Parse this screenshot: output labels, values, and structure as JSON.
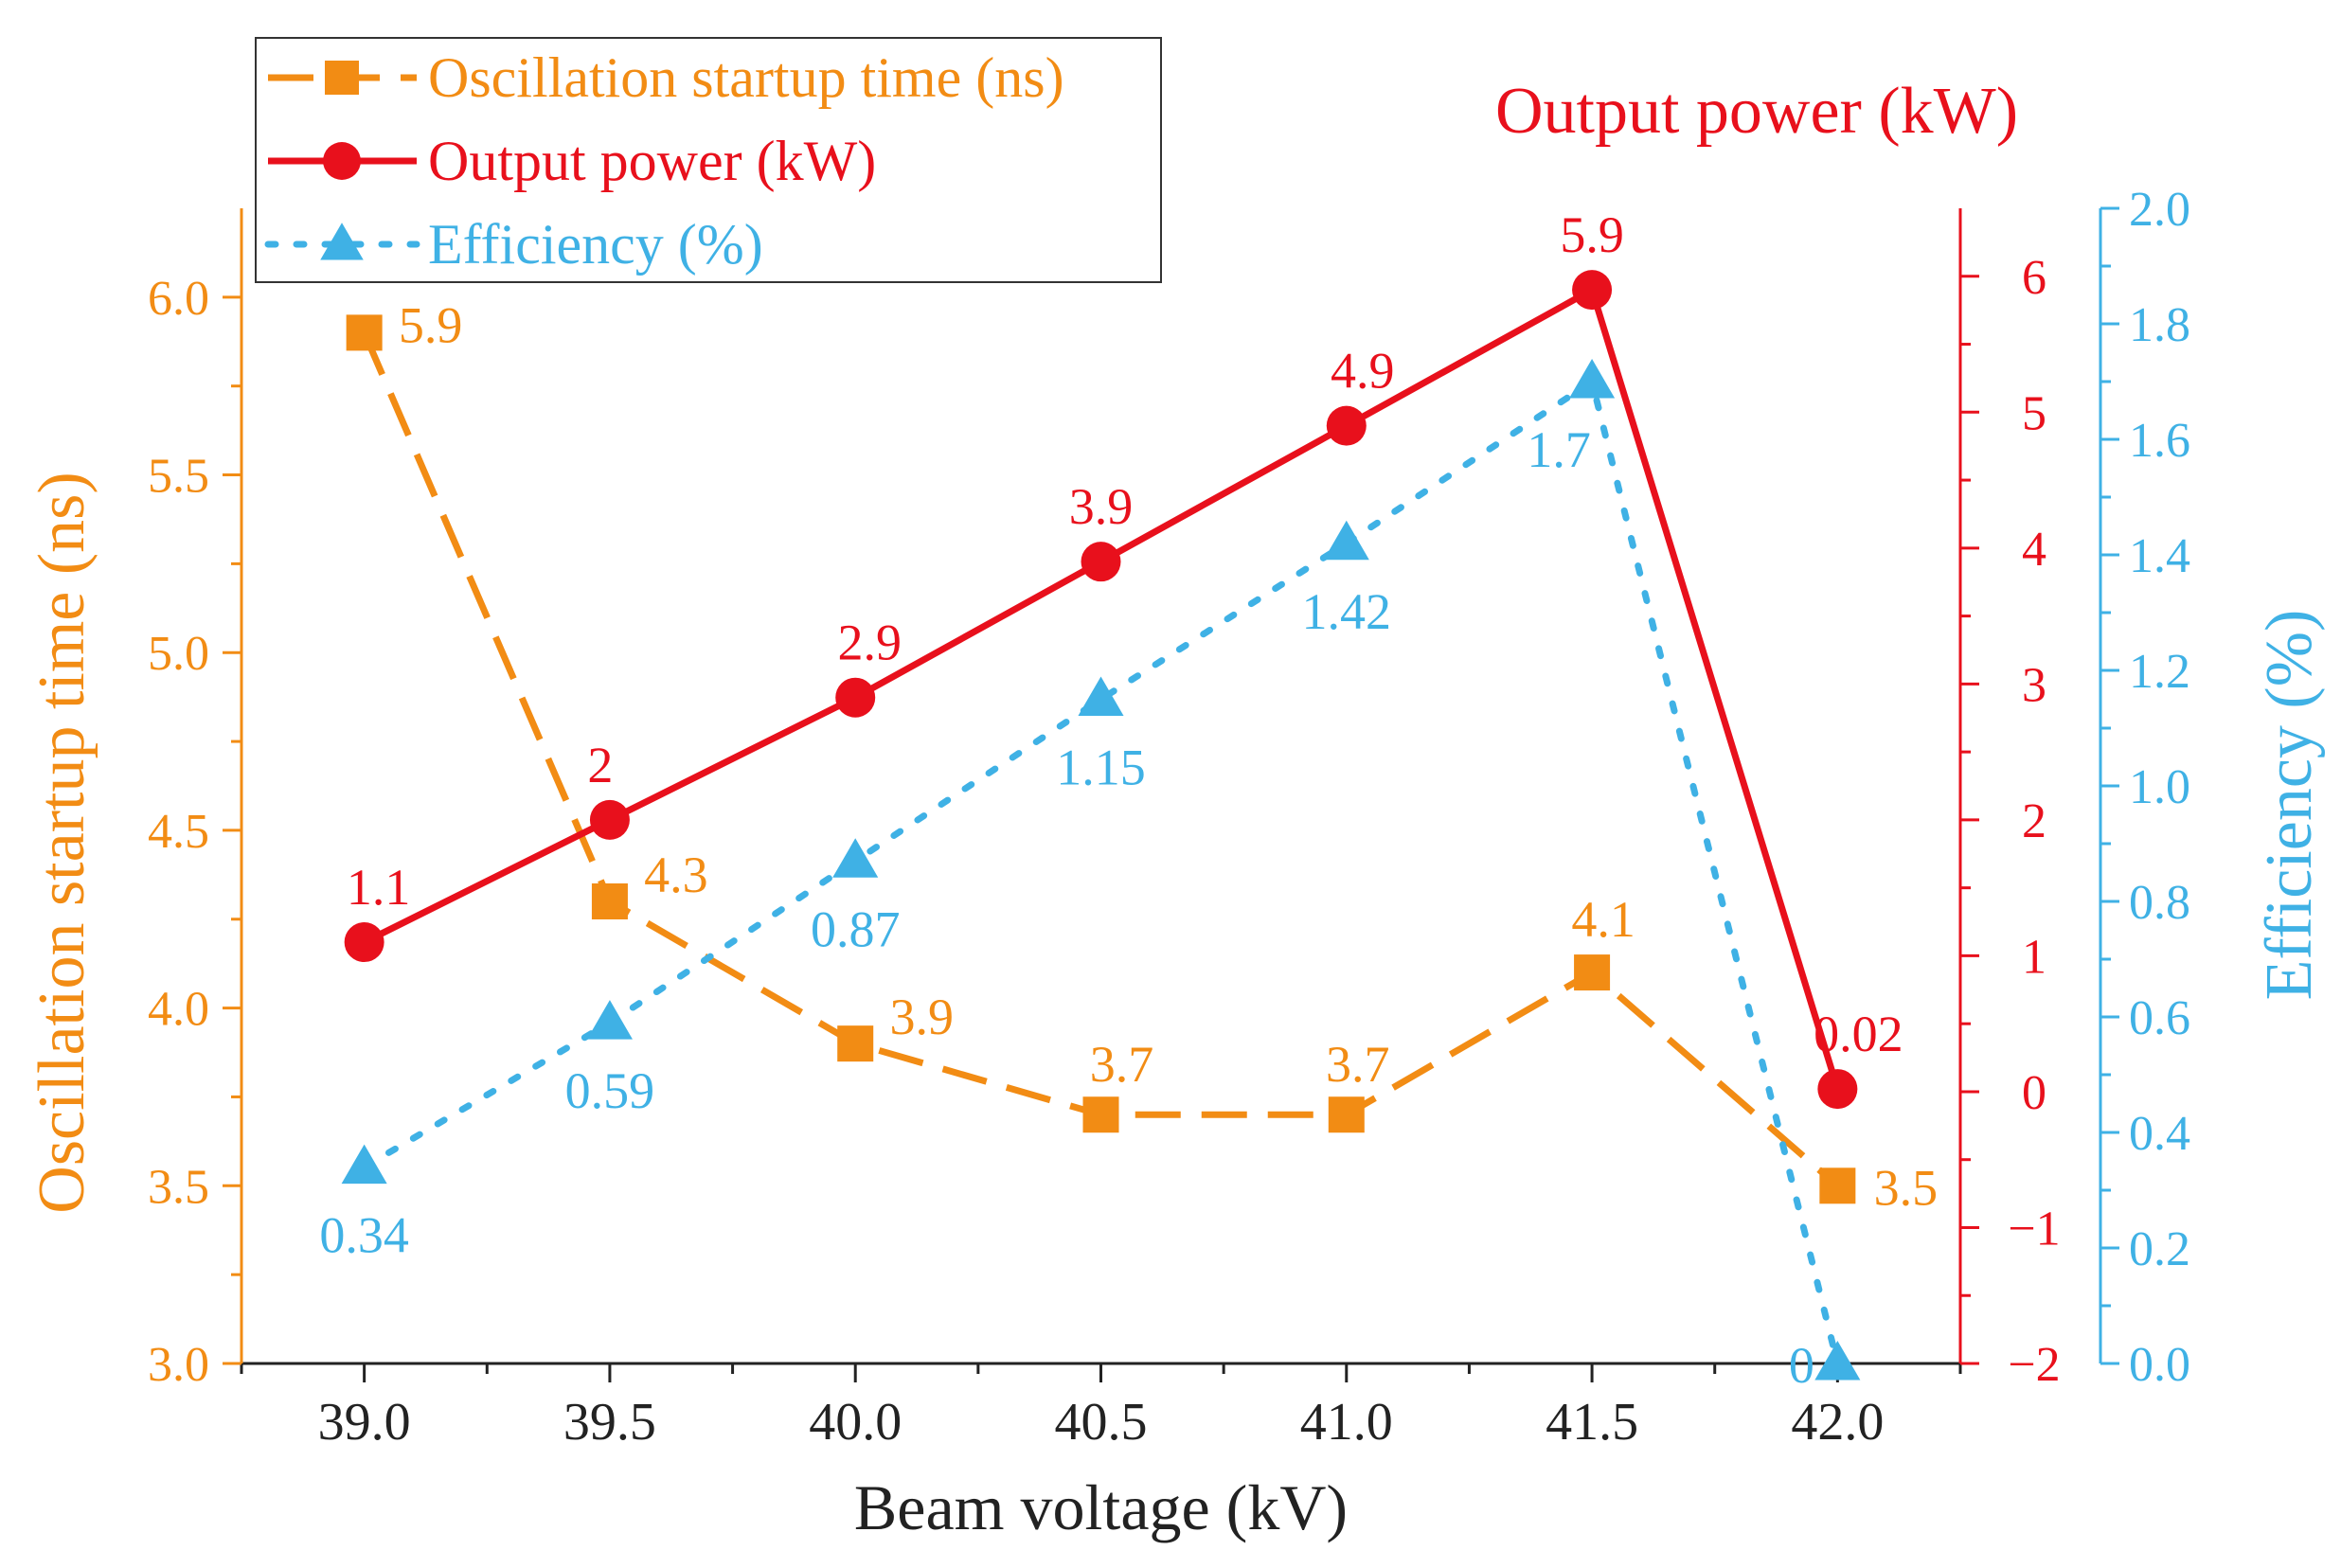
{
  "chart_data": {
    "type": "line",
    "xlabel": "Beam voltage (kV)",
    "x": [
      39.0,
      39.5,
      40.0,
      40.5,
      41.0,
      41.5,
      42.0
    ],
    "x_tick_labels": [
      "39.0",
      "39.5",
      "40.0",
      "40.5",
      "41.0",
      "41.5",
      "42.0"
    ],
    "xlim": [
      38.75,
      42.25
    ],
    "series": [
      {
        "name": "Oscillation startup time (ns)",
        "axis": "left",
        "color": "#F28C14",
        "marker": "square",
        "line_style": "dashed",
        "values": [
          5.9,
          4.3,
          3.9,
          3.7,
          3.7,
          4.1,
          3.5
        ],
        "data_labels": [
          "5.9",
          "4.3",
          "3.9",
          "3.7",
          "3.7",
          "4.1",
          "3.5"
        ]
      },
      {
        "name": "Output power (kW)",
        "axis": "right1",
        "color": "#E8101C",
        "marker": "circle",
        "line_style": "solid",
        "values": [
          1.1,
          2.0,
          2.9,
          3.9,
          4.9,
          5.9,
          0.02
        ],
        "data_labels": [
          "1.1",
          "2",
          "2.9",
          "3.9",
          "4.9",
          "5.9",
          "0.02"
        ]
      },
      {
        "name": "Efficiency (%)",
        "axis": "right2",
        "color": "#3FB1E5",
        "marker": "triangle",
        "line_style": "dotted",
        "values": [
          0.34,
          0.59,
          0.87,
          1.15,
          1.42,
          1.7,
          0.0
        ],
        "data_labels": [
          "0.34",
          "0.59",
          "0.87",
          "1.15",
          "1.42",
          "1.7",
          "0"
        ]
      }
    ],
    "axes": {
      "left": {
        "label": "Oscillation startup time (ns)",
        "range": [
          3.0,
          6.25
        ],
        "ticks": [
          3.0,
          3.5,
          4.0,
          4.5,
          5.0,
          5.5,
          6.0
        ],
        "tick_labels": [
          "3.0",
          "3.5",
          "4.0",
          "4.5",
          "5.0",
          "5.5",
          "6.0"
        ],
        "color": "#F28C14"
      },
      "right1": {
        "label": "Output power (kW)",
        "range": [
          -2,
          6.5
        ],
        "ticks": [
          -2,
          -1,
          0,
          1,
          2,
          3,
          4,
          5,
          6
        ],
        "tick_labels": [
          "−2",
          "−1",
          "0",
          "1",
          "2",
          "3",
          "4",
          "5",
          "6"
        ],
        "color": "#E8101C"
      },
      "right2": {
        "label": "Efficiency (%)",
        "range": [
          0.0,
          2.0
        ],
        "ticks": [
          0.0,
          0.2,
          0.4,
          0.6,
          0.8,
          1.0,
          1.2,
          1.4,
          1.6,
          1.8,
          2.0
        ],
        "tick_labels": [
          "0.0",
          "0.2",
          "0.4",
          "0.6",
          "0.8",
          "1.0",
          "1.2",
          "1.4",
          "1.6",
          "1.8",
          "2.0"
        ],
        "color": "#3FB1E5"
      }
    },
    "legend": {
      "position": "top-left",
      "entries": [
        "Oscillation startup time (ns)",
        "Output power (kW)",
        "Efficiency (%)"
      ]
    },
    "grid": false
  }
}
